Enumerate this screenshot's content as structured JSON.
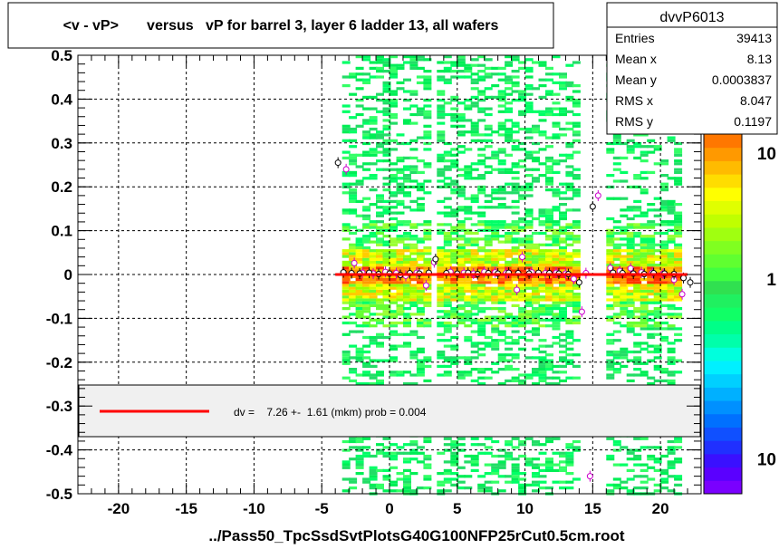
{
  "title": "<v - vP>       versus   vP for barrel 3, layer 6 ladder 13, all wafers",
  "xlabel": "../Pass50_TpcSsdSvtPlotsG40G100NFP25rCut0.5cm.root",
  "stats": {
    "name": "dvvP6013",
    "rows": [
      {
        "label": "Entries",
        "value": "39413"
      },
      {
        "label": "Mean x",
        "value": "8.13"
      },
      {
        "label": "Mean y",
        "value": "0.0003837"
      },
      {
        "label": "RMS x",
        "value": "8.047"
      },
      {
        "label": "RMS y",
        "value": "0.1197"
      }
    ]
  },
  "fit_legend": {
    "text": "dv =    7.26 +-  1.61 (mkm) prob = 0.004",
    "line_color": "#ff0000"
  },
  "colors": {
    "frame": "#000000",
    "fit": "#ff0000",
    "profile_black": "#000000",
    "profile_magenta": "#cc00cc"
  },
  "chart_data": {
    "type": "heatmap",
    "title": "<v - vP>       versus   vP for barrel 3, layer 6 ladder 13, all wafers",
    "xlabel": "../Pass50_TpcSsdSvtPlotsG40G100NFP25rCut0.5cm.root",
    "ylabel": "",
    "xlim": [
      -23,
      23
    ],
    "ylim": [
      -0.5,
      0.5
    ],
    "x_ticks": [
      -20,
      -15,
      -10,
      -5,
      0,
      5,
      10,
      15,
      20
    ],
    "y_ticks": [
      -0.5,
      -0.4,
      -0.3,
      -0.2,
      -0.1,
      0,
      0.1,
      0.2,
      0.3,
      0.4,
      0.5
    ],
    "y_tick_labels": [
      "-0.5",
      "-0.4",
      "-0.3",
      "-0.2",
      "-0.1",
      "0",
      "0.1",
      "0.2",
      "0.3",
      "0.4",
      "0.5"
    ],
    "grid": true,
    "occupied_x_ranges": [
      [
        -3.5,
        3.0
      ],
      [
        3.5,
        10.0
      ],
      [
        10.0,
        14.0
      ],
      [
        16.0,
        21.5
      ]
    ],
    "dense_band_y": [
      -0.06,
      0.06
    ],
    "color_scale": {
      "type": "log",
      "tick_labels": [
        "10",
        "1",
        "10"
      ],
      "tick_positions": [
        0.05,
        0.4,
        0.9
      ]
    },
    "fit_line": {
      "x": [
        -4,
        22
      ],
      "y": [
        0.0,
        0.0
      ]
    },
    "profile_black": {
      "x": [
        -3.8,
        -3.4,
        -2.8,
        -2.2,
        -1.5,
        -0.8,
        0,
        0.8,
        1.5,
        2.2,
        2.9,
        3.4,
        4.2,
        5,
        5.8,
        6.5,
        7.3,
        8,
        8.8,
        9.5,
        10.3,
        11,
        11.8,
        12.5,
        13.2,
        14.0,
        15.0,
        16.5,
        17.2,
        18,
        18.8,
        19.5,
        20.3,
        21,
        21.7,
        22.2
      ],
      "y": [
        0.255,
        0.005,
        0.003,
        0.002,
        0.004,
        0.001,
        0.002,
        -0.001,
        0.003,
        0.002,
        0.004,
        0.035,
        0.003,
        0.002,
        0.004,
        0.001,
        0.003,
        0.002,
        0.004,
        0.003,
        0.002,
        0.004,
        0.003,
        0.002,
        0.001,
        -0.018,
        0.155,
        0.004,
        0.003,
        0.002,
        0.001,
        0.003,
        0.002,
        0.001,
        -0.008,
        -0.018
      ]
    },
    "profile_magenta": {
      "x": [
        -3.2,
        -2.6,
        -2.0,
        -1.2,
        -0.3,
        0.5,
        1.2,
        2.0,
        2.7,
        3.3,
        4.5,
        5.5,
        6.2,
        7,
        7.8,
        8.6,
        9.4,
        9.8,
        10.5,
        11.5,
        12.3,
        13.0,
        13.6,
        14.2,
        14.5,
        15.4,
        16.3,
        17.0,
        17.8,
        18.6,
        19.4,
        20.2,
        21.0,
        21.6,
        14.8
      ],
      "y": [
        0.24,
        0.026,
        0.004,
        0.002,
        0.006,
        0.003,
        -0.003,
        0.004,
        -0.025,
        0.028,
        0.006,
        0.004,
        0.002,
        0.006,
        0.005,
        0.003,
        -0.035,
        0.04,
        0.005,
        0.003,
        0.004,
        0.002,
        -0.01,
        -0.085,
        0.003,
        0.18,
        0.015,
        0.008,
        0.014,
        0.005,
        0.004,
        0.002,
        -0.012,
        -0.045,
        -0.46
      ]
    }
  }
}
